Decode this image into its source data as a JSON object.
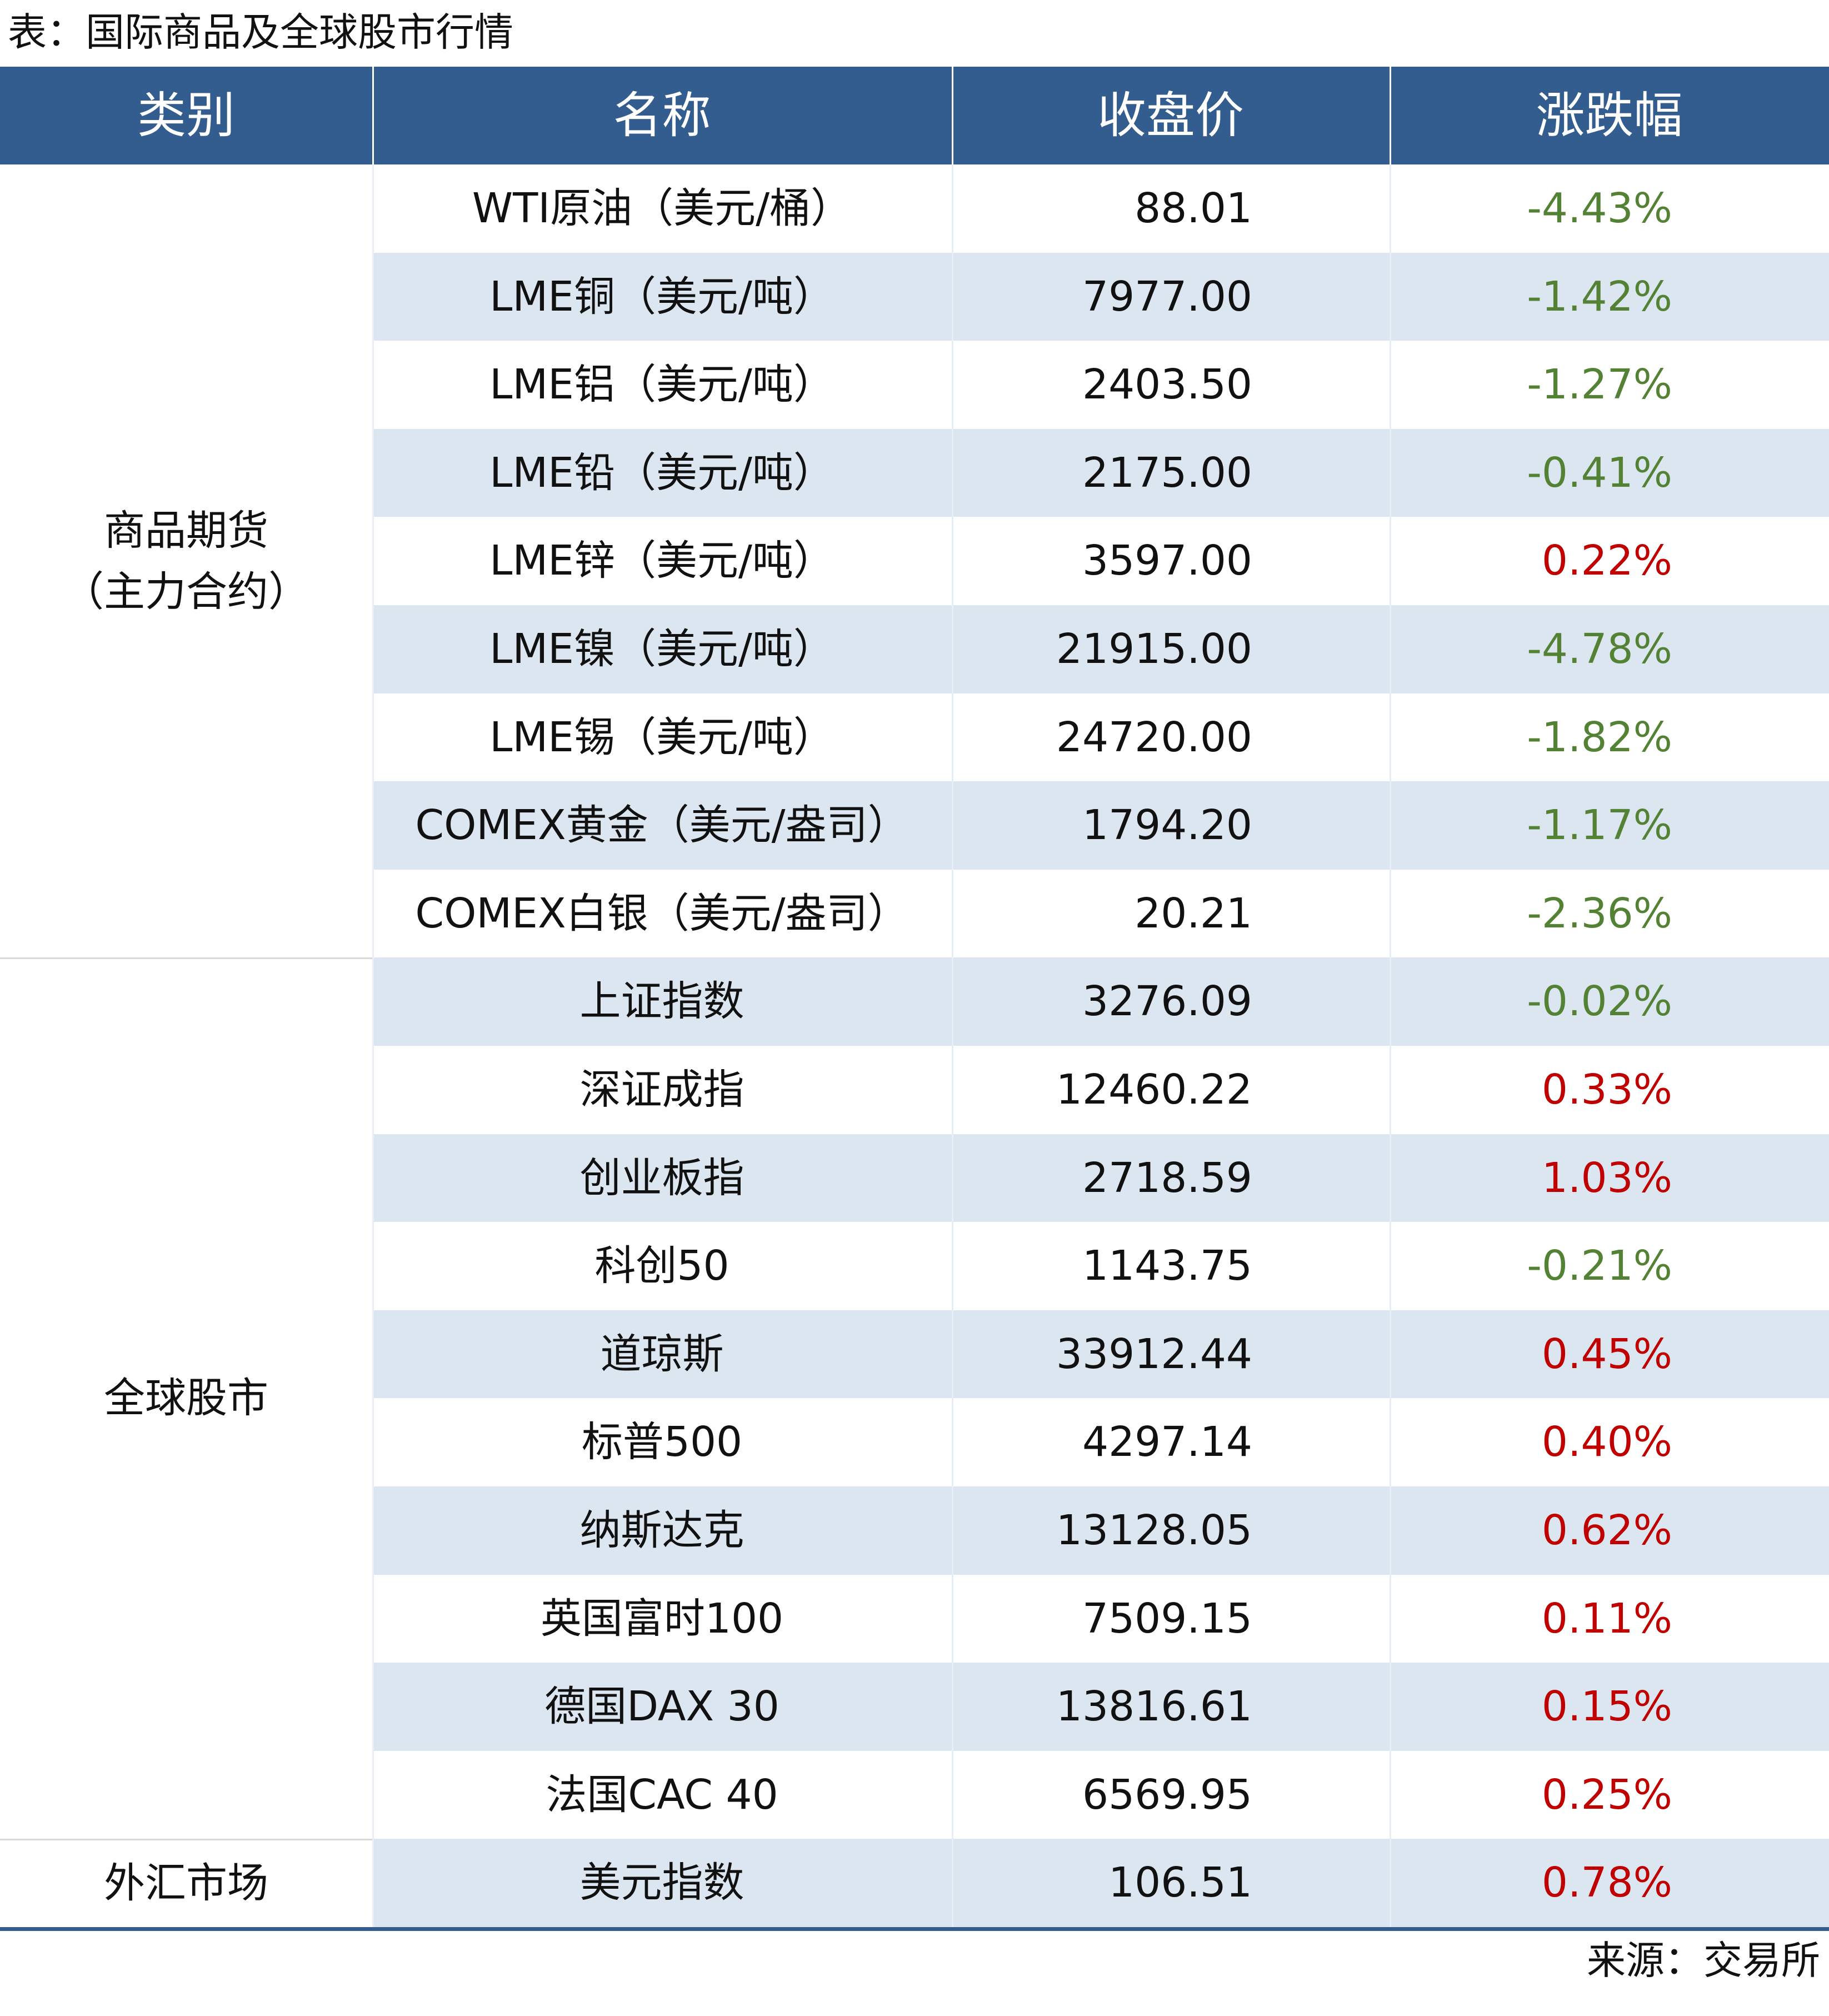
{
  "title": "表：国际商品及全球股市行情",
  "table": {
    "header": [
      "类别",
      "名称",
      "收盘价",
      "涨跌幅"
    ],
    "rise_color": "#c00000",
    "fall_color": "#548235",
    "groups": [
      {
        "category": [
          "商品期货",
          "（主力合约）"
        ],
        "rows": [
          [
            "WTI原油（美元/桶）",
            "88.01",
            "-4.43%"
          ],
          [
            "LME铜（美元/吨）",
            "7977.00",
            "-1.42%"
          ],
          [
            "LME铝（美元/吨）",
            "2403.50",
            "-1.27%"
          ],
          [
            "LME铅（美元/吨）",
            "2175.00",
            "-0.41%"
          ],
          [
            "LME锌（美元/吨）",
            "3597.00",
            "0.22%"
          ],
          [
            "LME镍（美元/吨）",
            "21915.00",
            "-4.78%"
          ],
          [
            "LME锡（美元/吨）",
            "24720.00",
            "-1.82%"
          ],
          [
            "COMEX黄金（美元/盎司）",
            "1794.20",
            "-1.17%"
          ],
          [
            "COMEX白银（美元/盎司）",
            "20.21",
            "-2.36%"
          ]
        ]
      },
      {
        "category": [
          "全球股市"
        ],
        "rows": [
          [
            "上证指数",
            "3276.09",
            "-0.02%"
          ],
          [
            "深证成指",
            "12460.22",
            "0.33%"
          ],
          [
            "创业板指",
            "2718.59",
            "1.03%"
          ],
          [
            "科创50",
            "1143.75",
            "-0.21%"
          ],
          [
            "道琼斯",
            "33912.44",
            "0.45%"
          ],
          [
            "标普500",
            "4297.14",
            "0.40%"
          ],
          [
            "纳斯达克",
            "13128.05",
            "0.62%"
          ],
          [
            "英国富时100",
            "7509.15",
            "0.11%"
          ],
          [
            "德国DAX 30",
            "13816.61",
            "0.15%"
          ],
          [
            "法国CAC 40",
            "6569.95",
            "0.25%"
          ]
        ]
      },
      {
        "category": [
          "外汇市场"
        ],
        "rows": [
          [
            "美元指数",
            "106.51",
            "0.78%"
          ]
        ]
      }
    ]
  },
  "source": "来源：交易所"
}
